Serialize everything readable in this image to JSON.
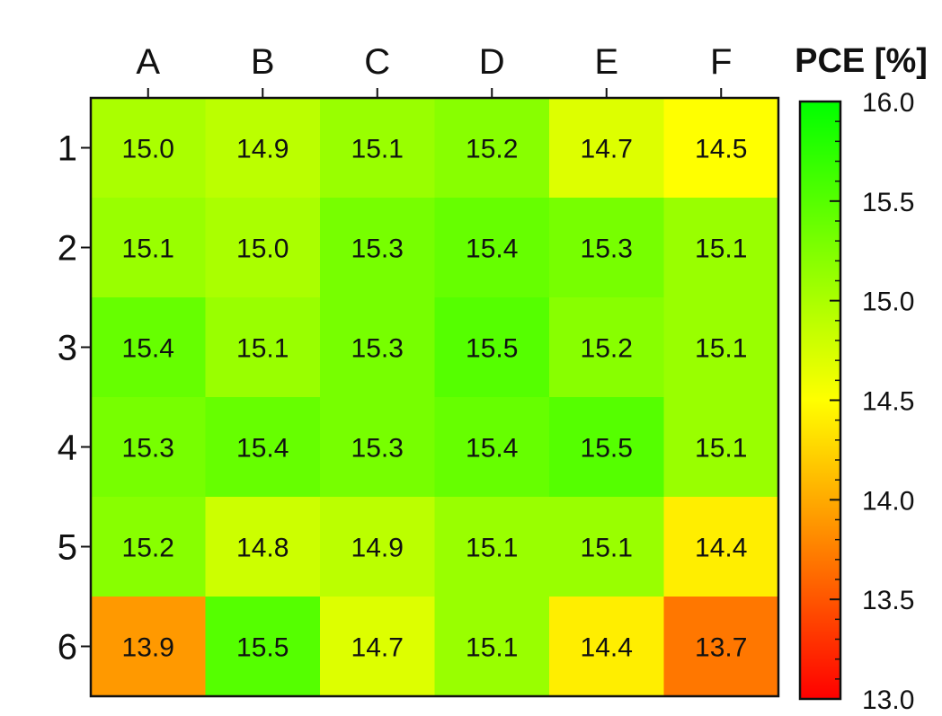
{
  "chart_data": {
    "type": "heatmap",
    "columns": [
      "A",
      "B",
      "C",
      "D",
      "E",
      "F"
    ],
    "rows": [
      "1",
      "2",
      "3",
      "4",
      "5",
      "6"
    ],
    "values": [
      [
        15.0,
        14.9,
        15.1,
        15.2,
        14.7,
        14.5
      ],
      [
        15.1,
        15.0,
        15.3,
        15.4,
        15.3,
        15.1
      ],
      [
        15.4,
        15.1,
        15.3,
        15.5,
        15.2,
        15.1
      ],
      [
        15.3,
        15.4,
        15.3,
        15.4,
        15.5,
        15.1
      ],
      [
        15.2,
        14.8,
        14.9,
        15.1,
        15.1,
        14.4
      ],
      [
        13.9,
        15.5,
        14.7,
        15.1,
        14.4,
        13.7
      ]
    ],
    "cell_labels": [
      [
        "15.0",
        "14.9",
        "15.1",
        "15.2",
        "14.7",
        "14.5"
      ],
      [
        "15.1",
        "15.0",
        "15.3",
        "15.4",
        "15.3",
        "15.1"
      ],
      [
        "15.4",
        "15.1",
        "15.3",
        "15.5",
        "15.2",
        "15.1"
      ],
      [
        "15.3",
        "15.4",
        "15.3",
        "15.4",
        "15.5",
        "15.1"
      ],
      [
        "15.2",
        "14.8",
        "14.9",
        "15.1",
        "15.1",
        "14.4"
      ],
      [
        "13.9",
        "15.5",
        "14.7",
        "15.1",
        "14.4",
        "13.7"
      ]
    ],
    "colorbar": {
      "title": "PCE [%]",
      "range": [
        13.0,
        16.0
      ],
      "ticks": [
        "13.0",
        "13.5",
        "14.0",
        "14.5",
        "15.0",
        "15.5",
        "16.0"
      ],
      "colormap": [
        "#ff0000",
        "#ff8000",
        "#ffff00",
        "#80ff00",
        "#00ff00"
      ]
    },
    "column_axis_position": "top",
    "row_axis_position": "left",
    "colorbar_position": "right",
    "grid": false
  }
}
